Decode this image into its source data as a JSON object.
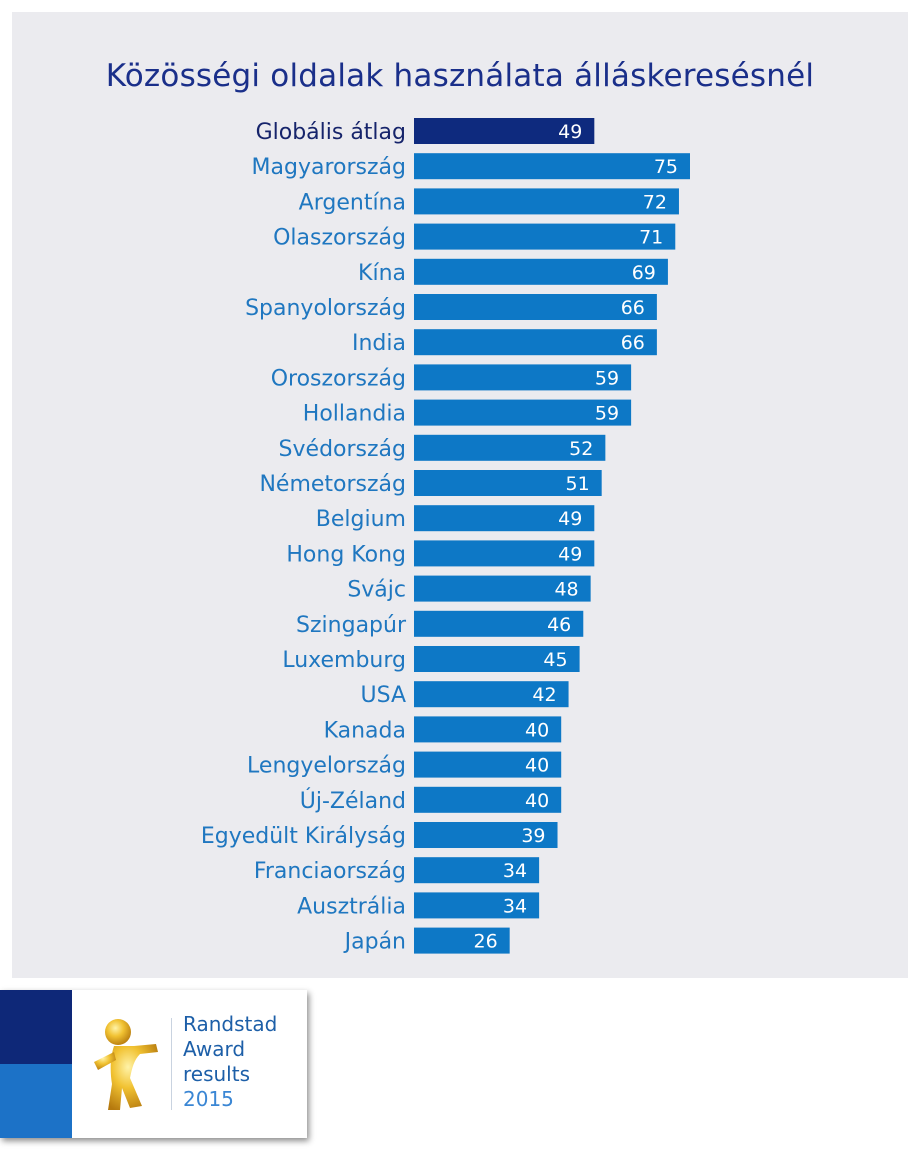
{
  "chart_data": {
    "type": "bar",
    "orientation": "horizontal",
    "title": "Közösségi oldalak használata álláskeresésnél",
    "categories": [
      "Globális átlag",
      "Magyarország",
      "Argentína",
      "Olaszország",
      "Kína",
      "Spanyolország",
      "India",
      "Oroszország",
      "Hollandia",
      "Svédország",
      "Németország",
      "Belgium",
      "Hong Kong",
      "Svájc",
      "Szingapúr",
      "Luxemburg",
      "USA",
      "Kanada",
      "Lengyelország",
      "Új-Zéland",
      "Egyedült Királyság",
      "Franciaország",
      "Ausztrália",
      "Japán"
    ],
    "values": [
      49,
      75,
      72,
      71,
      69,
      66,
      66,
      59,
      59,
      52,
      51,
      49,
      49,
      48,
      46,
      45,
      42,
      40,
      40,
      40,
      39,
      34,
      34,
      26
    ],
    "highlight_index": 0,
    "colors": {
      "highlight_bar": "#0e2a7e",
      "bar": "#0d78c6",
      "highlight_label": "#16246b",
      "label": "#1f77c0",
      "title": "#1a2f8a",
      "value_text": "#ffffff"
    },
    "xlim": [
      0,
      75
    ],
    "grid": false,
    "legend": "none"
  },
  "award": {
    "line1": "Randstad",
    "line2": "Award",
    "line3": "results",
    "year": "2015",
    "logo_icon": "randstad-award-figure-icon"
  }
}
